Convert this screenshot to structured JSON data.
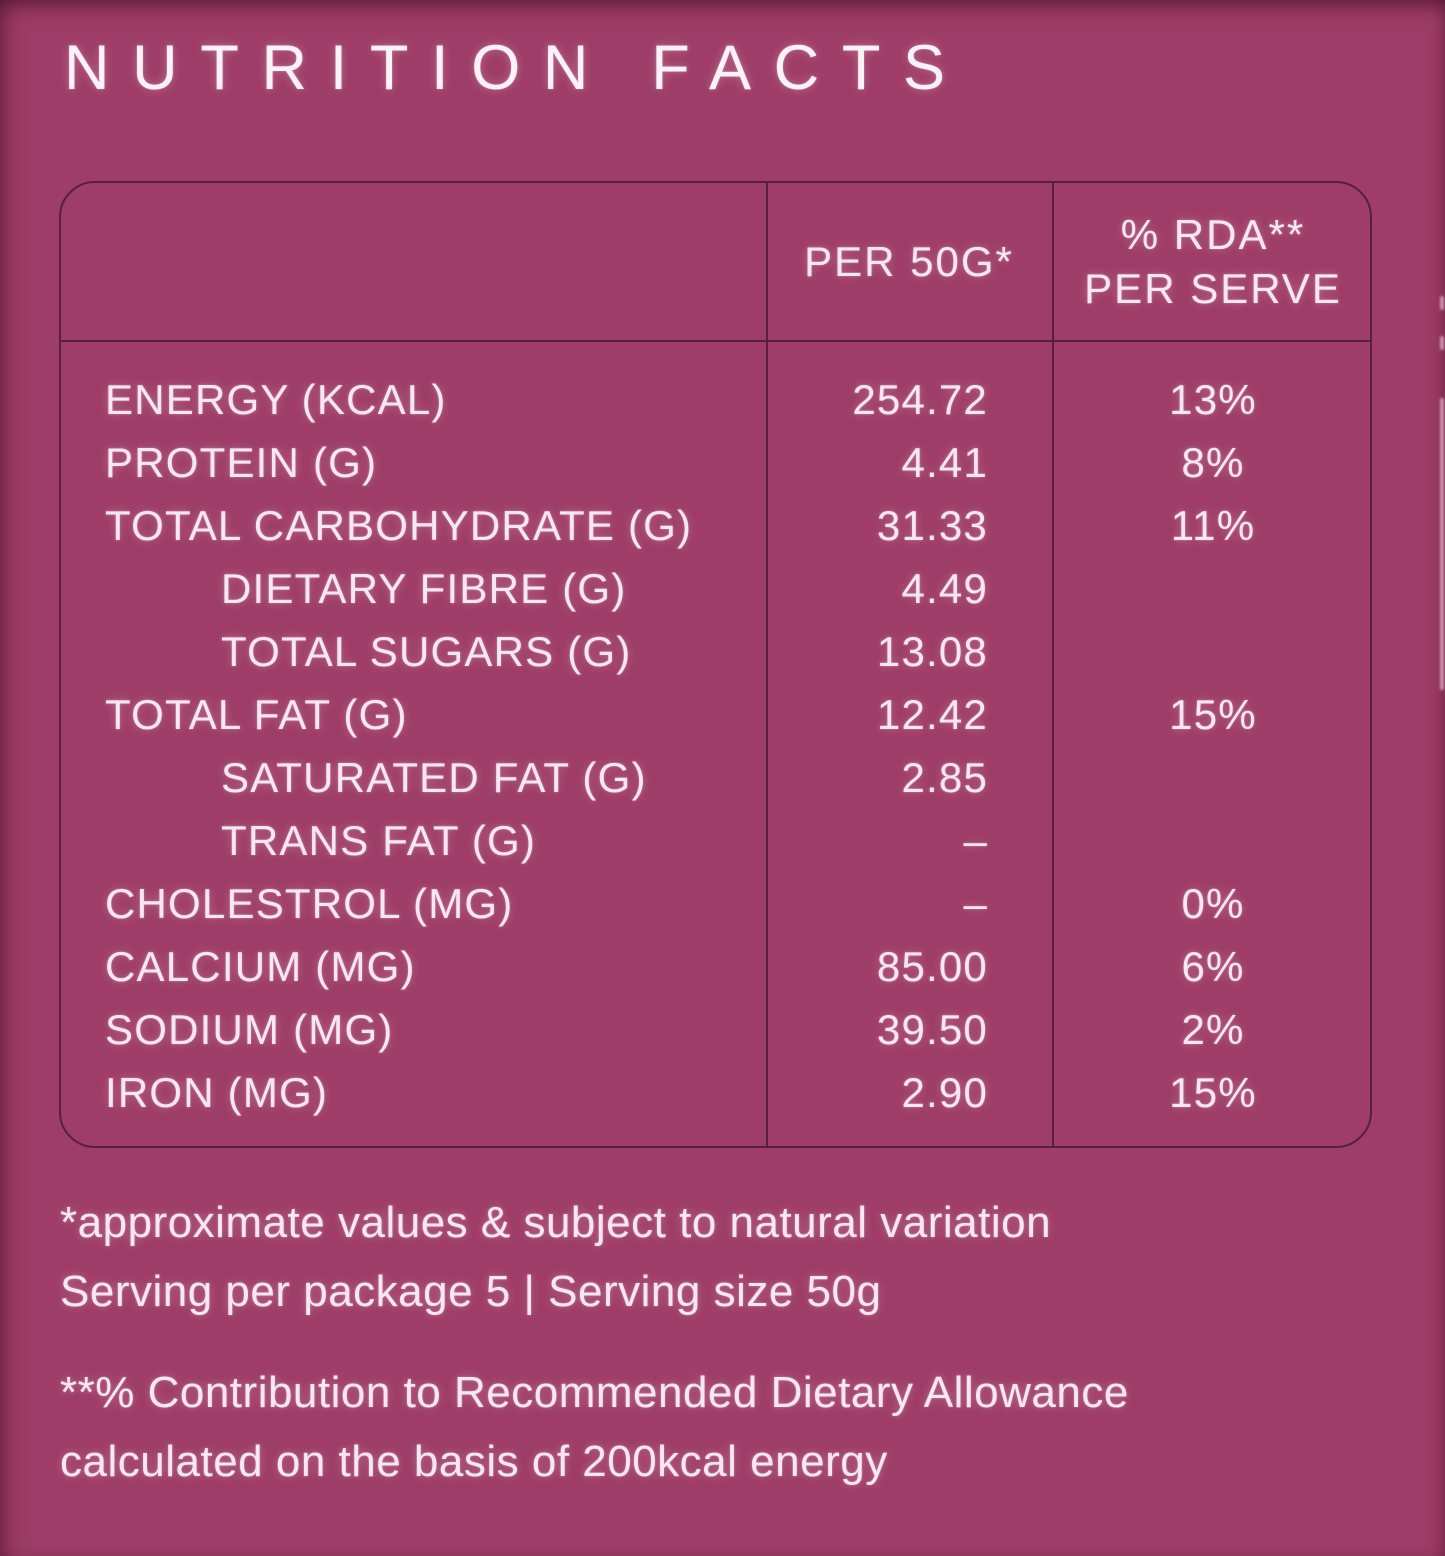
{
  "title": "NUTRITION FACTS",
  "colors": {
    "background": "#9e3d67",
    "text": "#f7e7f0",
    "title": "#fbf2f7",
    "line": "#57203d"
  },
  "table": {
    "header": {
      "col2_line1": "PER 50G*",
      "col3_line1": "% RDA**",
      "col3_line2": "PER SERVE"
    },
    "rows": [
      {
        "label": "ENERGY (KCAL)",
        "value": "254.72",
        "rda": "13%",
        "indent": false
      },
      {
        "label": "PROTEIN (G)",
        "value": "4.41",
        "rda": "8%",
        "indent": false
      },
      {
        "label": "TOTAL CARBOHYDRATE (G)",
        "value": "31.33",
        "rda": "11%",
        "indent": false
      },
      {
        "label": "DIETARY FIBRE (G)",
        "value": "4.49",
        "rda": "",
        "indent": true
      },
      {
        "label": "TOTAL SUGARS (G)",
        "value": "13.08",
        "rda": "",
        "indent": true
      },
      {
        "label": "TOTAL FAT (G)",
        "value": "12.42",
        "rda": "15%",
        "indent": false
      },
      {
        "label": "SATURATED FAT (G)",
        "value": "2.85",
        "rda": "",
        "indent": true
      },
      {
        "label": "TRANS FAT (G)",
        "value": "–",
        "rda": "",
        "indent": true
      },
      {
        "label": "CHOLESTROL (MG)",
        "value": "–",
        "rda": "0%",
        "indent": false
      },
      {
        "label": "CALCIUM (MG)",
        "value": "85.00",
        "rda": "6%",
        "indent": false
      },
      {
        "label": "SODIUM (MG)",
        "value": "39.50",
        "rda": "2%",
        "indent": false
      },
      {
        "label": "IRON (MG)",
        "value": "2.90",
        "rda": "15%",
        "indent": false
      }
    ]
  },
  "footnotes": {
    "note1_line1": "*approximate values & subject to natural variation",
    "note1_line2": "Serving per package 5  |  Serving size 50g",
    "note2_line1": "**% Contribution to Recommended Dietary Allowance",
    "note2_line2": "calculated on the basis of 200kcal energy"
  }
}
